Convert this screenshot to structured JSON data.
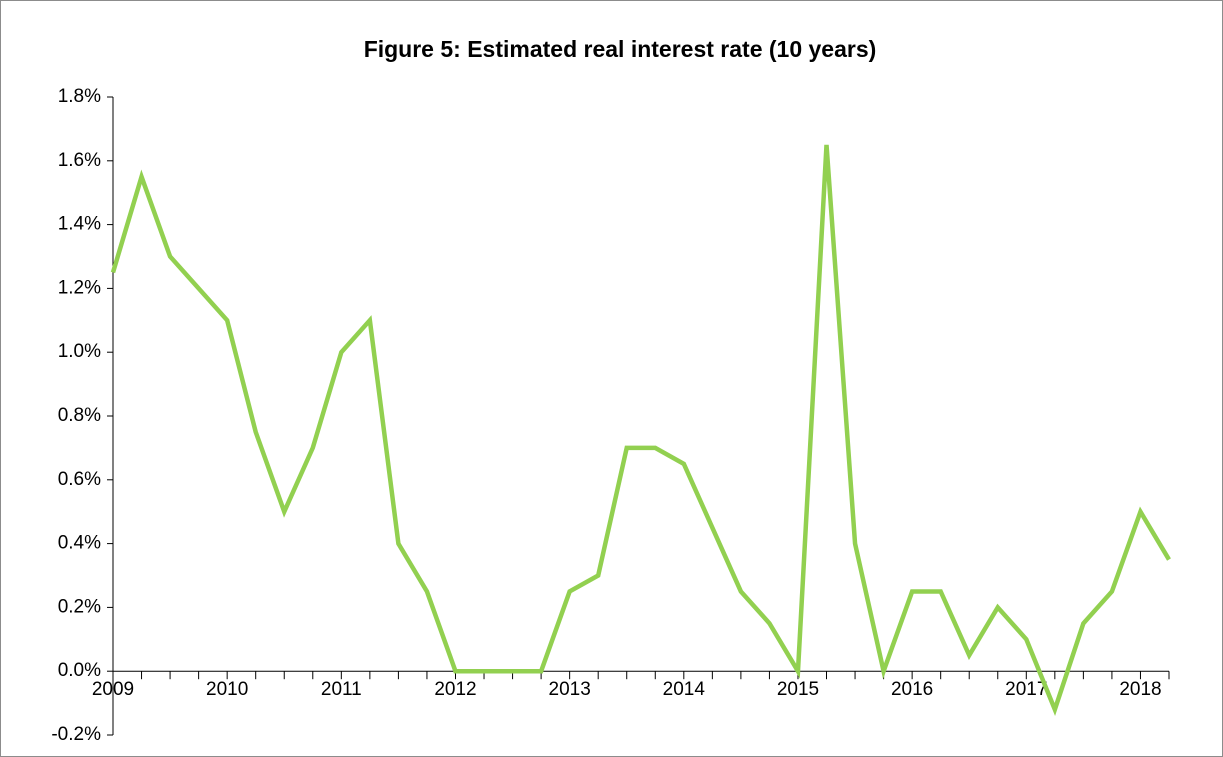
{
  "chart_data": {
    "type": "line",
    "title": "Figure 5: Estimated real interest rate (10 years)",
    "categories": [
      "2009",
      null,
      null,
      null,
      "2010",
      null,
      null,
      null,
      "2011",
      null,
      null,
      null,
      "2012",
      null,
      null,
      null,
      "2013",
      null,
      null,
      null,
      "2014",
      null,
      null,
      null,
      "2015",
      null,
      null,
      null,
      "2016",
      null,
      null,
      null,
      "2017",
      null,
      null,
      null,
      "2018",
      null
    ],
    "values": [
      1.25,
      1.55,
      1.3,
      1.2,
      1.1,
      0.75,
      0.5,
      0.7,
      1.0,
      1.1,
      0.4,
      0.25,
      0.0,
      0.0,
      0.0,
      0.0,
      0.25,
      0.3,
      0.7,
      0.7,
      0.65,
      0.45,
      0.25,
      0.15,
      0.0,
      1.65,
      0.4,
      0.0,
      0.25,
      0.25,
      0.05,
      0.2,
      0.1,
      -0.12,
      0.15,
      0.25,
      0.5,
      0.35
    ],
    "color": "#92d050",
    "ylim": [
      -0.2,
      1.8
    ],
    "yticks": [
      {
        "value": -0.2,
        "label": "-0.2%"
      },
      {
        "value": 0,
        "label": "0.0%"
      },
      {
        "value": 0.2,
        "label": "0.2%"
      },
      {
        "value": 0.4,
        "label": "0.4%"
      },
      {
        "value": 0.6,
        "label": "0.6%"
      },
      {
        "value": 0.8,
        "label": "0.8%"
      },
      {
        "value": 1.0,
        "label": "1.0%"
      },
      {
        "value": 1.2,
        "label": "1.2%"
      },
      {
        "value": 1.4,
        "label": "1.4%"
      },
      {
        "value": 1.6,
        "label": "1.6%"
      },
      {
        "value": 1.8,
        "label": "1.8%"
      }
    ],
    "grid": false
  }
}
